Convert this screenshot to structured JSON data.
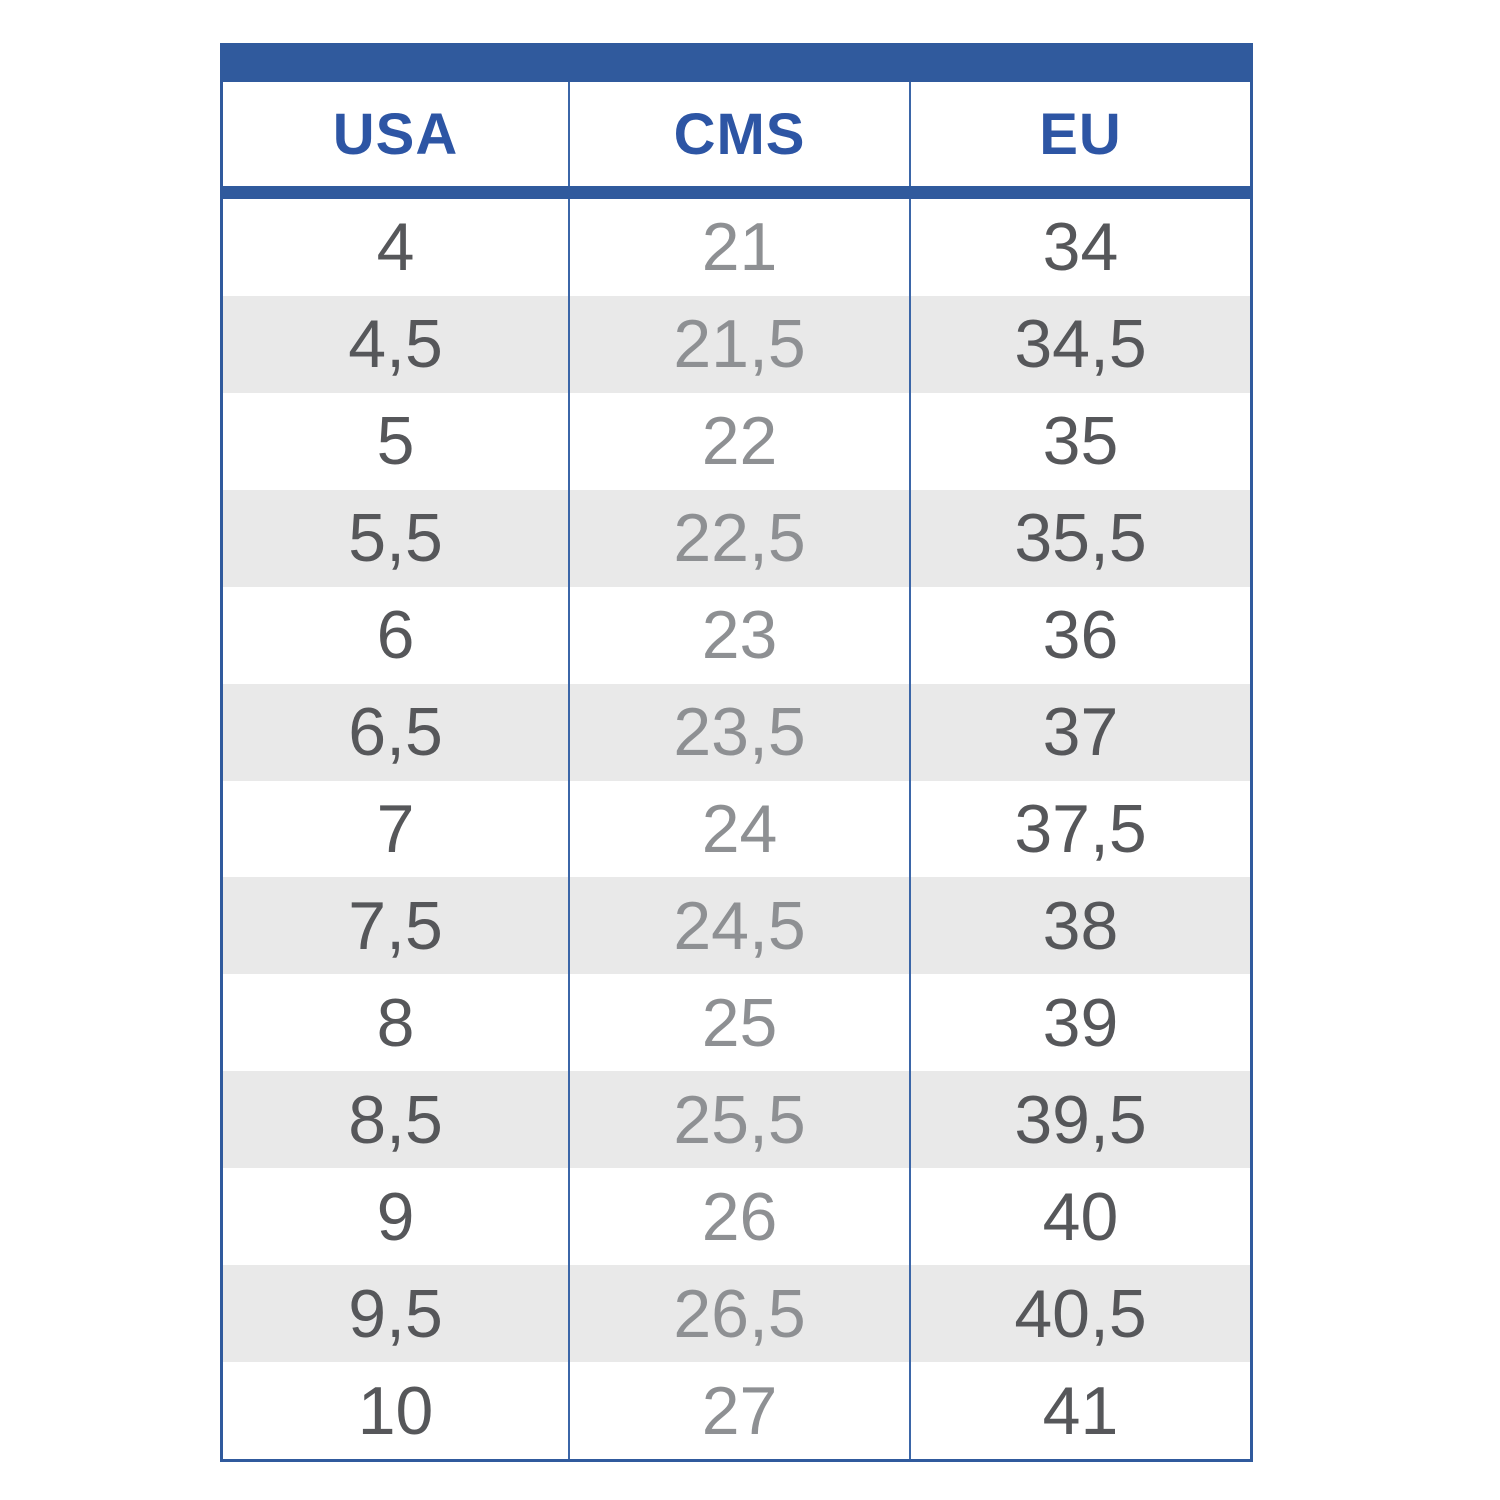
{
  "theme": {
    "accent-blue": "#305a9d",
    "header-text-blue": "#2d55a4",
    "divider-blue": "#3b66a8",
    "data-text-dark": "#56575a",
    "data-text-muted": "#8e9093",
    "stripe-gray": "#e9e9e9",
    "page-bg": "#ffffff"
  },
  "table": {
    "headers": [
      "USA",
      "CMS",
      "EU"
    ],
    "rows": [
      [
        "4",
        "21",
        "34"
      ],
      [
        "4,5",
        "21,5",
        "34,5"
      ],
      [
        "5",
        "22",
        "35"
      ],
      [
        "5,5",
        "22,5",
        "35,5"
      ],
      [
        "6",
        "23",
        "36"
      ],
      [
        "6,5",
        "23,5",
        "37"
      ],
      [
        "7",
        "24",
        "37,5"
      ],
      [
        "7,5",
        "24,5",
        "38"
      ],
      [
        "8",
        "25",
        "39"
      ],
      [
        "8,5",
        "25,5",
        "39,5"
      ],
      [
        "9",
        "26",
        "40"
      ],
      [
        "9,5",
        "26,5",
        "40,5"
      ],
      [
        "10",
        "27",
        "41"
      ]
    ]
  },
  "chart_data": {
    "type": "table",
    "columns": [
      "USA",
      "CMS",
      "EU"
    ],
    "rows": [
      [
        "4",
        "21",
        "34"
      ],
      [
        "4,5",
        "21,5",
        "34,5"
      ],
      [
        "5",
        "22",
        "35"
      ],
      [
        "5,5",
        "22,5",
        "35,5"
      ],
      [
        "6",
        "23",
        "36"
      ],
      [
        "6,5",
        "23,5",
        "37"
      ],
      [
        "7",
        "24",
        "37,5"
      ],
      [
        "7,5",
        "24,5",
        "38"
      ],
      [
        "8",
        "25",
        "39"
      ],
      [
        "8,5",
        "25,5",
        "39,5"
      ],
      [
        "9",
        "26",
        "40"
      ],
      [
        "9,5",
        "26,5",
        "40,5"
      ],
      [
        "10",
        "27",
        "41"
      ]
    ],
    "layout": {
      "striped_rows": true,
      "header_position": "top",
      "decimal_separator": ","
    }
  }
}
